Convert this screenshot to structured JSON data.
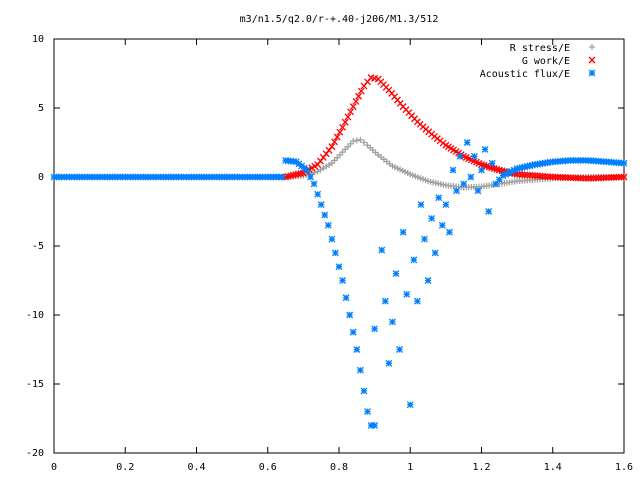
{
  "chart_data": {
    "type": "scatter",
    "title": "m3/n1.5/q2.0/r-+.40-j206/M1.3/512",
    "xlabel": "",
    "ylabel": "",
    "xlim": [
      0,
      1.6
    ],
    "ylim": [
      -20,
      10
    ],
    "xticks": [
      "0",
      "0.2",
      "0.4",
      "0.6",
      "0.8",
      "1",
      "1.2",
      "1.4",
      "1.6"
    ],
    "yticks": [
      "10",
      "5",
      "0",
      "-5",
      "-10",
      "-15",
      "-20"
    ],
    "grid": false,
    "legend_position": "top-right",
    "series": [
      {
        "name": "R stress/E",
        "marker": "plus",
        "color": "#a0a0a0",
        "points": [
          [
            0.65,
            0.0
          ],
          [
            0.7,
            0.1
          ],
          [
            0.74,
            0.4
          ],
          [
            0.78,
            1.0
          ],
          [
            0.81,
            1.8
          ],
          [
            0.84,
            2.6
          ],
          [
            0.86,
            2.7
          ],
          [
            0.88,
            2.3
          ],
          [
            0.91,
            1.6
          ],
          [
            0.95,
            0.8
          ],
          [
            1.0,
            0.2
          ],
          [
            1.05,
            -0.3
          ],
          [
            1.1,
            -0.6
          ],
          [
            1.15,
            -0.75
          ],
          [
            1.2,
            -0.7
          ],
          [
            1.25,
            -0.5
          ],
          [
            1.3,
            -0.3
          ],
          [
            1.4,
            -0.1
          ],
          [
            1.5,
            0.0
          ],
          [
            1.6,
            0.0
          ]
        ]
      },
      {
        "name": "G work/E",
        "marker": "cross",
        "color": "#ff0000",
        "points": [
          [
            0.65,
            0.0
          ],
          [
            0.7,
            0.3
          ],
          [
            0.74,
            0.9
          ],
          [
            0.78,
            2.2
          ],
          [
            0.81,
            3.6
          ],
          [
            0.84,
            5.1
          ],
          [
            0.87,
            6.6
          ],
          [
            0.89,
            7.2
          ],
          [
            0.91,
            7.1
          ],
          [
            0.94,
            6.3
          ],
          [
            0.98,
            5.1
          ],
          [
            1.02,
            4.0
          ],
          [
            1.06,
            3.1
          ],
          [
            1.1,
            2.3
          ],
          [
            1.15,
            1.5
          ],
          [
            1.2,
            0.9
          ],
          [
            1.25,
            0.5
          ],
          [
            1.3,
            0.2
          ],
          [
            1.4,
            0.0
          ],
          [
            1.5,
            -0.1
          ],
          [
            1.6,
            0.0
          ]
        ]
      },
      {
        "name": "Acoustic flux/E",
        "marker": "star",
        "color": "#0080ff",
        "points": [
          [
            0.0,
            0.0
          ],
          [
            0.1,
            0.0
          ],
          [
            0.2,
            0.0
          ],
          [
            0.3,
            0.0
          ],
          [
            0.4,
            0.0
          ],
          [
            0.5,
            0.0
          ],
          [
            0.6,
            0.0
          ],
          [
            0.64,
            0.0
          ],
          [
            0.65,
            1.2
          ],
          [
            0.68,
            1.1
          ],
          [
            0.71,
            0.5
          ],
          [
            0.73,
            -0.5
          ],
          [
            0.75,
            -2.0
          ],
          [
            0.77,
            -3.5
          ],
          [
            0.79,
            -5.5
          ],
          [
            0.81,
            -7.5
          ],
          [
            0.83,
            -10.0
          ],
          [
            0.85,
            -12.5
          ],
          [
            0.86,
            -14.0
          ],
          [
            0.87,
            -15.5
          ],
          [
            0.88,
            -17.0
          ],
          [
            0.89,
            -18.0
          ],
          [
            0.9,
            -18.0
          ],
          [
            0.9,
            -11.0
          ],
          [
            0.92,
            -5.3
          ],
          [
            0.93,
            -9.0
          ],
          [
            0.94,
            -13.5
          ],
          [
            0.95,
            -10.5
          ],
          [
            0.96,
            -7.0
          ],
          [
            0.97,
            -12.5
          ],
          [
            0.98,
            -4.0
          ],
          [
            0.99,
            -8.5
          ],
          [
            1.0,
            -16.5
          ],
          [
            1.01,
            -6.0
          ],
          [
            1.02,
            -9.0
          ],
          [
            1.03,
            -2.0
          ],
          [
            1.04,
            -4.5
          ],
          [
            1.05,
            -7.5
          ],
          [
            1.06,
            -3.0
          ],
          [
            1.07,
            -5.5
          ],
          [
            1.08,
            -1.5
          ],
          [
            1.09,
            -3.5
          ],
          [
            1.1,
            -2.0
          ],
          [
            1.11,
            -4.0
          ],
          [
            1.12,
            0.5
          ],
          [
            1.13,
            -1.0
          ],
          [
            1.14,
            1.5
          ],
          [
            1.15,
            -0.5
          ],
          [
            1.16,
            2.5
          ],
          [
            1.17,
            0.0
          ],
          [
            1.18,
            1.5
          ],
          [
            1.19,
            -1.0
          ],
          [
            1.2,
            0.5
          ],
          [
            1.21,
            2.0
          ],
          [
            1.22,
            -2.5
          ],
          [
            1.23,
            1.0
          ],
          [
            1.24,
            -0.5
          ],
          [
            1.26,
            0.1
          ],
          [
            1.3,
            0.6
          ],
          [
            1.35,
            0.9
          ],
          [
            1.4,
            1.1
          ],
          [
            1.45,
            1.2
          ],
          [
            1.5,
            1.2
          ],
          [
            1.55,
            1.1
          ],
          [
            1.6,
            1.0
          ]
        ]
      }
    ]
  }
}
